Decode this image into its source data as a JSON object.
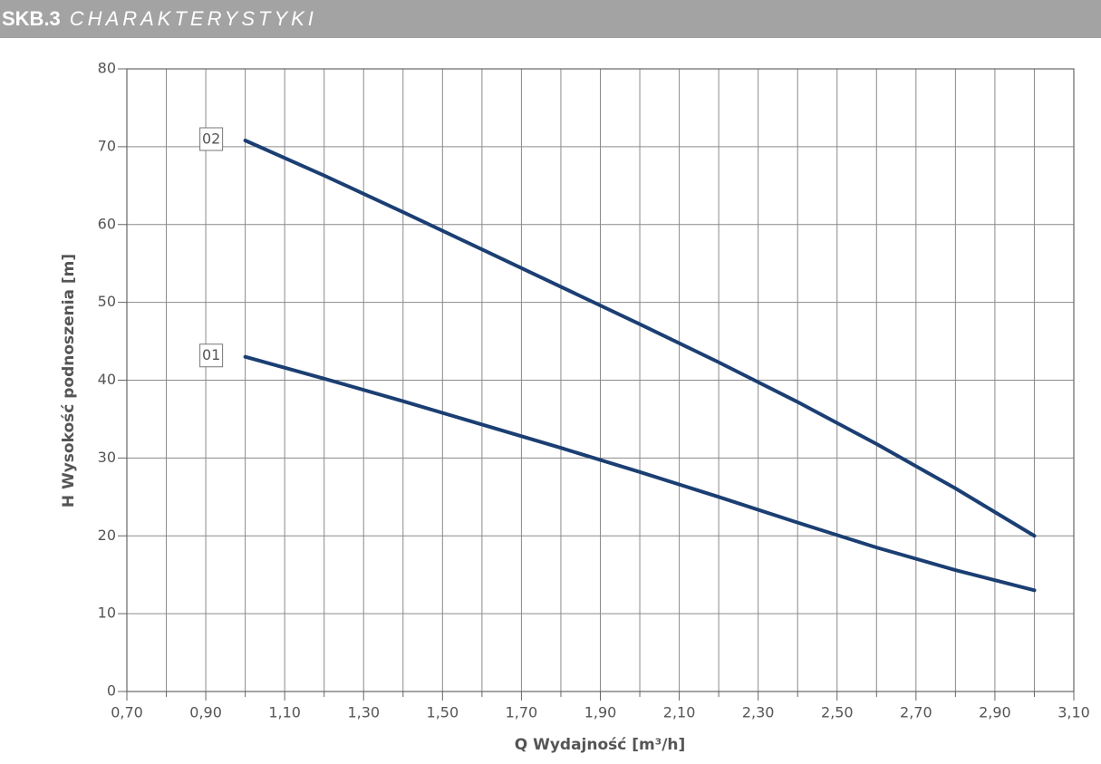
{
  "chart_data": {
    "type": "line",
    "title_code": "SKB.3",
    "title": "CHARAKTERYSTYKI",
    "x_label": "Q Wydajność [m³/h]",
    "y_label": "H Wysokość podnoszenia [m]",
    "xlim": [
      0.7,
      3.1
    ],
    "ylim": [
      0,
      80
    ],
    "xticks": [
      {
        "value": 0.7,
        "label": "0,70"
      },
      {
        "value": 0.9,
        "label": "0,90"
      },
      {
        "value": 1.1,
        "label": "1,10"
      },
      {
        "value": 1.3,
        "label": "1,30"
      },
      {
        "value": 1.5,
        "label": "1,50"
      },
      {
        "value": 1.7,
        "label": "1,70"
      },
      {
        "value": 1.9,
        "label": "1,90"
      },
      {
        "value": 2.1,
        "label": "2,10"
      },
      {
        "value": 2.3,
        "label": "2,30"
      },
      {
        "value": 2.5,
        "label": "2,50"
      },
      {
        "value": 2.7,
        "label": "2,70"
      },
      {
        "value": 2.9,
        "label": "2,90"
      },
      {
        "value": 3.1,
        "label": "3,10"
      }
    ],
    "xminorticks": [
      0.8,
      1.0,
      1.2,
      1.4,
      1.6,
      1.8,
      2.0,
      2.2,
      2.4,
      2.6,
      2.8,
      3.0
    ],
    "yticks": [
      0,
      10,
      20,
      30,
      40,
      50,
      60,
      70,
      80
    ],
    "grid": true,
    "x": [
      1.0,
      1.2,
      1.4,
      1.6,
      1.8,
      2.0,
      2.2,
      2.4,
      2.6,
      2.8,
      3.0
    ],
    "series": [
      {
        "name": "01",
        "color": "#1b3f73",
        "values": [
          43,
          40.2,
          37.3,
          34.3,
          31.3,
          28.2,
          25.0,
          21.7,
          18.5,
          15.6,
          13
        ]
      },
      {
        "name": "02",
        "color": "#1b3f73",
        "values": [
          70.8,
          66.3,
          61.6,
          56.8,
          52.0,
          47.2,
          42.3,
          37.2,
          31.8,
          26.1,
          20.0
        ]
      }
    ]
  }
}
